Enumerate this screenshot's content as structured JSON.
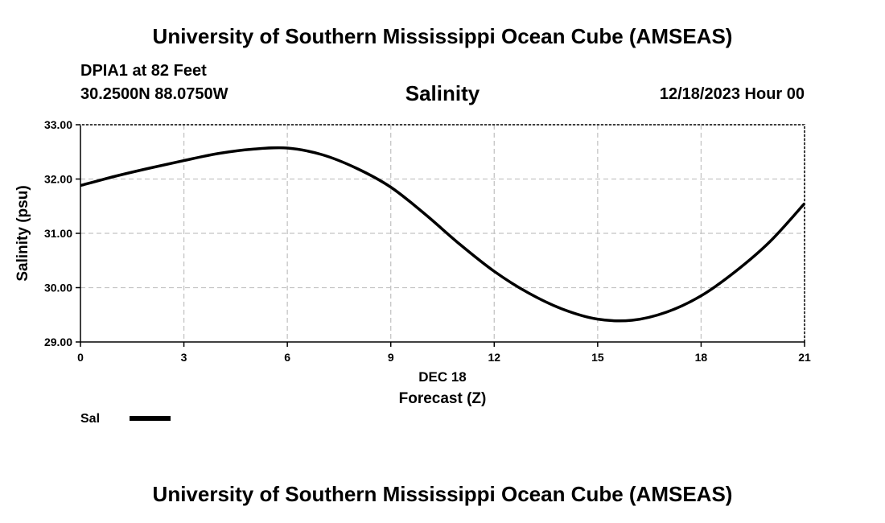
{
  "header": {
    "title": "University of Southern Mississippi Ocean Cube (AMSEAS)",
    "station": "DPIA1 at 82 Feet",
    "coords": "30.2500N  88.0750W",
    "datetime": "12/18/2023 Hour 00"
  },
  "footer": {
    "title": "University of Southern Mississippi Ocean Cube (AMSEAS)"
  },
  "chart_data": {
    "type": "line",
    "title": "Salinity",
    "ylabel": "Salinity (psu)",
    "xlabel": "Forecast (Z)",
    "date_label": "DEC 18",
    "xlim": [
      0,
      21
    ],
    "ylim": [
      29.0,
      33.0
    ],
    "xticks": [
      0,
      3,
      6,
      9,
      12,
      15,
      18,
      21
    ],
    "yticks": [
      "29.00",
      "30.00",
      "31.00",
      "32.00",
      "33.00"
    ],
    "grid": true,
    "legend": {
      "label": "Sal",
      "placement": "bottom-left"
    },
    "series": [
      {
        "name": "Sal",
        "x": [
          0,
          1,
          2,
          3,
          4,
          5,
          6,
          7,
          8,
          9,
          10,
          11,
          12,
          13,
          14,
          15,
          16,
          17,
          18,
          19,
          20,
          21
        ],
        "values": [
          31.88,
          32.05,
          32.2,
          32.34,
          32.47,
          32.55,
          32.57,
          32.45,
          32.2,
          31.85,
          31.35,
          30.8,
          30.3,
          29.9,
          29.6,
          29.42,
          29.4,
          29.55,
          29.85,
          30.3,
          30.85,
          31.55
        ]
      }
    ]
  }
}
